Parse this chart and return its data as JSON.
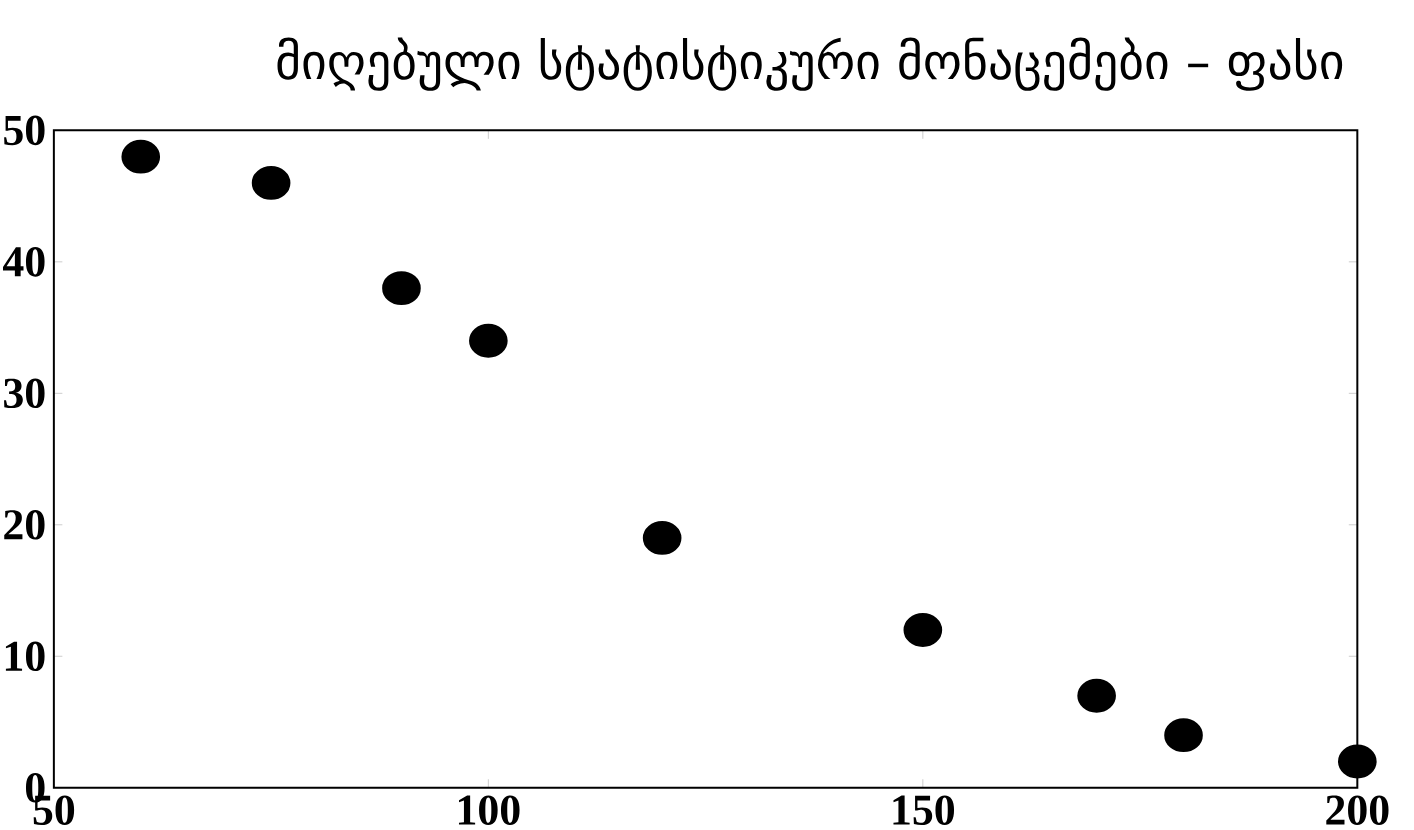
{
  "chart_data": {
    "type": "scatter",
    "title": "მიღებული სტატისტიკური მონაცემები – ფასი",
    "x": [
      60,
      75,
      90,
      100,
      120,
      150,
      170,
      180,
      200
    ],
    "values": [
      48,
      46,
      38,
      34,
      19,
      12,
      7,
      4,
      2
    ],
    "color": "#000000",
    "xlim": [
      50,
      200
    ],
    "ylim": [
      0,
      50
    ],
    "xticks": [
      50,
      100,
      150,
      200
    ],
    "yticks": [
      0,
      10,
      20,
      30,
      40,
      50
    ],
    "grid": false
  }
}
